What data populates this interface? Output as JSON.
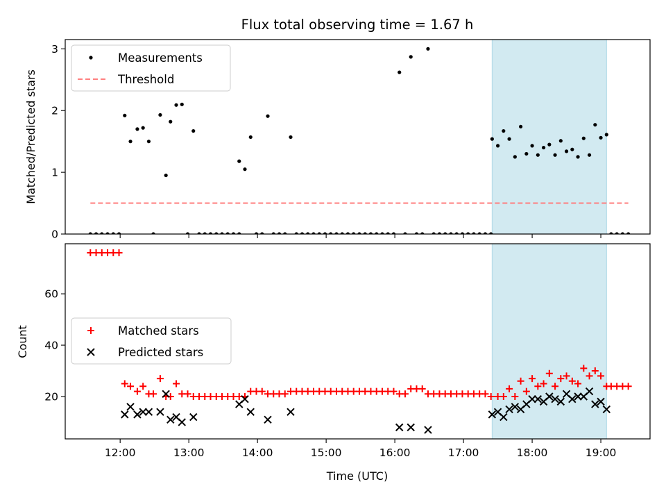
{
  "chart_data": {
    "title": "Flux total observing time = 1.67 h",
    "xlabel": "Time (UTC)",
    "x_ticks": [
      "12:00",
      "13:00",
      "14:00",
      "15:00",
      "16:00",
      "17:00",
      "18:00",
      "19:00"
    ],
    "x_tick_hours": [
      12,
      13,
      14,
      15,
      16,
      17,
      18,
      19
    ],
    "xlim": [
      "11:12",
      "19:43"
    ],
    "shaded_region": {
      "start": "17:25",
      "end": "19:05",
      "color": "#add8e6"
    },
    "panels": [
      {
        "type": "scatter",
        "ylabel": "Matched/Predicted stars",
        "ylim": [
          0,
          3.15
        ],
        "yticks": [
          0,
          1,
          2,
          3
        ],
        "legend": {
          "placement": "upper-left",
          "entries": [
            "Measurements",
            "Threshold"
          ]
        },
        "series": [
          {
            "name": "Measurements",
            "color": "#000000",
            "marker": "dot",
            "points": [
              [
                "11:34",
                0
              ],
              [
                "11:39",
                0
              ],
              [
                "11:44",
                0
              ],
              [
                "11:49",
                0
              ],
              [
                "11:54",
                0
              ],
              [
                "11:59",
                0
              ],
              [
                "12:04",
                1.92
              ],
              [
                "12:09",
                1.5
              ],
              [
                "12:15",
                1.7
              ],
              [
                "12:20",
                1.72
              ],
              [
                "12:25",
                1.5
              ],
              [
                "12:29",
                0
              ],
              [
                "12:35",
                1.93
              ],
              [
                "12:40",
                0.95
              ],
              [
                "12:44",
                1.82
              ],
              [
                "12:49",
                2.09
              ],
              [
                "12:54",
                2.1
              ],
              [
                "12:59",
                0
              ],
              [
                "13:04",
                1.67
              ],
              [
                "13:09",
                0
              ],
              [
                "13:14",
                0
              ],
              [
                "13:19",
                0
              ],
              [
                "13:24",
                0
              ],
              [
                "13:29",
                0
              ],
              [
                "13:34",
                0
              ],
              [
                "13:39",
                0
              ],
              [
                "13:44",
                0
              ],
              [
                "13:44",
                1.18
              ],
              [
                "13:49",
                1.05
              ],
              [
                "13:54",
                1.57
              ],
              [
                "13:59",
                0
              ],
              [
                "14:04",
                0
              ],
              [
                "14:09",
                1.91
              ],
              [
                "14:14",
                0
              ],
              [
                "14:19",
                0
              ],
              [
                "14:24",
                0
              ],
              [
                "14:29",
                1.57
              ],
              [
                "14:34",
                0
              ],
              [
                "14:39",
                0
              ],
              [
                "14:44",
                0
              ],
              [
                "14:49",
                0
              ],
              [
                "14:54",
                0
              ],
              [
                "14:59",
                0
              ],
              [
                "15:04",
                0
              ],
              [
                "15:09",
                0
              ],
              [
                "15:14",
                0
              ],
              [
                "15:19",
                0
              ],
              [
                "15:24",
                0
              ],
              [
                "15:29",
                0
              ],
              [
                "15:34",
                0
              ],
              [
                "15:39",
                0
              ],
              [
                "15:44",
                0
              ],
              [
                "15:49",
                0
              ],
              [
                "15:54",
                0
              ],
              [
                "15:59",
                0
              ],
              [
                "16:04",
                2.62
              ],
              [
                "16:09",
                0
              ],
              [
                "16:14",
                2.87
              ],
              [
                "16:19",
                0
              ],
              [
                "16:24",
                0
              ],
              [
                "16:29",
                3.0
              ],
              [
                "16:34",
                0
              ],
              [
                "16:39",
                0
              ],
              [
                "16:44",
                0
              ],
              [
                "16:49",
                0
              ],
              [
                "16:54",
                0
              ],
              [
                "16:59",
                0
              ],
              [
                "17:04",
                0
              ],
              [
                "17:09",
                0
              ],
              [
                "17:14",
                0
              ],
              [
                "17:19",
                0
              ],
              [
                "17:24",
                0
              ],
              [
                "17:25",
                1.54
              ],
              [
                "17:30",
                1.43
              ],
              [
                "17:35",
                1.67
              ],
              [
                "17:40",
                1.54
              ],
              [
                "17:45",
                1.25
              ],
              [
                "17:50",
                1.74
              ],
              [
                "17:55",
                1.3
              ],
              [
                "18:00",
                1.43
              ],
              [
                "18:05",
                1.28
              ],
              [
                "18:10",
                1.4
              ],
              [
                "18:15",
                1.45
              ],
              [
                "18:20",
                1.28
              ],
              [
                "18:25",
                1.51
              ],
              [
                "18:30",
                1.34
              ],
              [
                "18:35",
                1.37
              ],
              [
                "18:40",
                1.25
              ],
              [
                "18:45",
                1.55
              ],
              [
                "18:50",
                1.28
              ],
              [
                "18:55",
                1.77
              ],
              [
                "19:00",
                1.56
              ],
              [
                "19:05",
                1.61
              ],
              [
                "19:09",
                0
              ],
              [
                "19:14",
                0
              ],
              [
                "19:19",
                0
              ],
              [
                "19:24",
                0
              ]
            ]
          },
          {
            "name": "Threshold",
            "type": "line",
            "style": "dashed",
            "color": "#ff7f7f",
            "y": 0.5,
            "x_range": [
              "11:34",
              "19:24"
            ]
          }
        ]
      },
      {
        "type": "scatter",
        "ylabel": "Count",
        "ylim": [
          3.5,
          79.5
        ],
        "yticks": [
          20,
          40,
          60
        ],
        "legend": {
          "placement": "center-left",
          "entries": [
            "Matched stars",
            "Predicted stars"
          ]
        },
        "series": [
          {
            "name": "Matched stars",
            "color": "#ff0000",
            "marker": "plus",
            "points": [
              [
                "11:34",
                76
              ],
              [
                "11:39",
                76
              ],
              [
                "11:44",
                76
              ],
              [
                "11:49",
                76
              ],
              [
                "11:54",
                76
              ],
              [
                "11:59",
                76
              ],
              [
                "12:04",
                25
              ],
              [
                "12:09",
                24
              ],
              [
                "12:15",
                22
              ],
              [
                "12:20",
                24
              ],
              [
                "12:25",
                21
              ],
              [
                "12:29",
                21
              ],
              [
                "12:35",
                27
              ],
              [
                "12:40",
                20
              ],
              [
                "12:44",
                20
              ],
              [
                "12:49",
                25
              ],
              [
                "12:54",
                21
              ],
              [
                "12:59",
                21
              ],
              [
                "13:04",
                20
              ],
              [
                "13:09",
                20
              ],
              [
                "13:14",
                20
              ],
              [
                "13:19",
                20
              ],
              [
                "13:24",
                20
              ],
              [
                "13:29",
                20
              ],
              [
                "13:34",
                20
              ],
              [
                "13:39",
                20
              ],
              [
                "13:44",
                20
              ],
              [
                "13:49",
                20
              ],
              [
                "13:54",
                22
              ],
              [
                "13:59",
                22
              ],
              [
                "14:04",
                22
              ],
              [
                "14:09",
                21
              ],
              [
                "14:14",
                21
              ],
              [
                "14:19",
                21
              ],
              [
                "14:24",
                21
              ],
              [
                "14:29",
                22
              ],
              [
                "14:34",
                22
              ],
              [
                "14:39",
                22
              ],
              [
                "14:44",
                22
              ],
              [
                "14:49",
                22
              ],
              [
                "14:54",
                22
              ],
              [
                "14:59",
                22
              ],
              [
                "15:04",
                22
              ],
              [
                "15:09",
                22
              ],
              [
                "15:14",
                22
              ],
              [
                "15:19",
                22
              ],
              [
                "15:24",
                22
              ],
              [
                "15:29",
                22
              ],
              [
                "15:34",
                22
              ],
              [
                "15:39",
                22
              ],
              [
                "15:44",
                22
              ],
              [
                "15:49",
                22
              ],
              [
                "15:54",
                22
              ],
              [
                "15:59",
                22
              ],
              [
                "16:04",
                21
              ],
              [
                "16:09",
                21
              ],
              [
                "16:14",
                23
              ],
              [
                "16:19",
                23
              ],
              [
                "16:24",
                23
              ],
              [
                "16:29",
                21
              ],
              [
                "16:34",
                21
              ],
              [
                "16:39",
                21
              ],
              [
                "16:44",
                21
              ],
              [
                "16:49",
                21
              ],
              [
                "16:54",
                21
              ],
              [
                "16:59",
                21
              ],
              [
                "17:04",
                21
              ],
              [
                "17:09",
                21
              ],
              [
                "17:14",
                21
              ],
              [
                "17:19",
                21
              ],
              [
                "17:24",
                20
              ],
              [
                "17:30",
                20
              ],
              [
                "17:35",
                20
              ],
              [
                "17:40",
                23
              ],
              [
                "17:45",
                20
              ],
              [
                "17:50",
                26
              ],
              [
                "17:55",
                22
              ],
              [
                "18:00",
                27
              ],
              [
                "18:05",
                24
              ],
              [
                "18:10",
                25
              ],
              [
                "18:15",
                29
              ],
              [
                "18:20",
                24
              ],
              [
                "18:25",
                27
              ],
              [
                "18:30",
                28
              ],
              [
                "18:35",
                26
              ],
              [
                "18:40",
                25
              ],
              [
                "18:45",
                31
              ],
              [
                "18:50",
                28
              ],
              [
                "18:55",
                30
              ],
              [
                "19:00",
                28
              ],
              [
                "19:05",
                24
              ],
              [
                "19:09",
                24
              ],
              [
                "19:14",
                24
              ],
              [
                "19:19",
                24
              ],
              [
                "19:24",
                24
              ]
            ]
          },
          {
            "name": "Predicted stars",
            "color": "#000000",
            "marker": "x",
            "points": [
              [
                "12:04",
                13
              ],
              [
                "12:09",
                16
              ],
              [
                "12:15",
                13
              ],
              [
                "12:20",
                14
              ],
              [
                "12:25",
                14
              ],
              [
                "12:35",
                14
              ],
              [
                "12:40",
                21
              ],
              [
                "12:44",
                11
              ],
              [
                "12:49",
                12
              ],
              [
                "12:54",
                10
              ],
              [
                "13:04",
                12
              ],
              [
                "13:44",
                17
              ],
              [
                "13:49",
                19
              ],
              [
                "13:54",
                14
              ],
              [
                "14:09",
                11
              ],
              [
                "14:29",
                14
              ],
              [
                "16:04",
                8
              ],
              [
                "16:14",
                8
              ],
              [
                "16:29",
                7
              ],
              [
                "17:25",
                13
              ],
              [
                "17:30",
                14
              ],
              [
                "17:35",
                12
              ],
              [
                "17:40",
                15
              ],
              [
                "17:45",
                16
              ],
              [
                "17:50",
                15
              ],
              [
                "17:55",
                17
              ],
              [
                "18:00",
                19
              ],
              [
                "18:05",
                19
              ],
              [
                "18:10",
                18
              ],
              [
                "18:15",
                20
              ],
              [
                "18:20",
                19
              ],
              [
                "18:25",
                18
              ],
              [
                "18:30",
                21
              ],
              [
                "18:35",
                19
              ],
              [
                "18:40",
                20
              ],
              [
                "18:45",
                20
              ],
              [
                "18:50",
                22
              ],
              [
                "18:55",
                17
              ],
              [
                "19:00",
                18
              ],
              [
                "19:05",
                15
              ]
            ]
          }
        ]
      }
    ]
  }
}
